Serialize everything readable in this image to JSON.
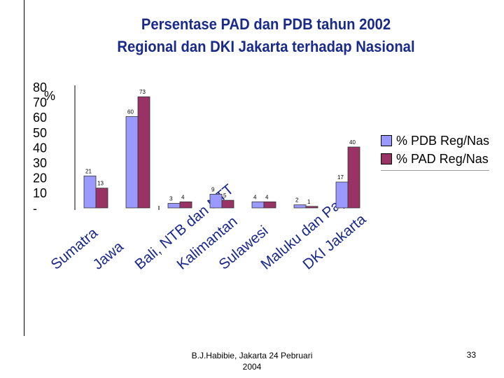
{
  "title_line1": "Persentase PAD dan PDB tahun 2002",
  "title_line2": "Regional dan DKI Jakarta terhadap Nasional",
  "chart_data": {
    "type": "bar",
    "title": "Persentase PAD dan PDB tahun 2002 Regional dan DKI Jakarta terhadap Nasional",
    "ylabel": "%",
    "ylim": [
      0,
      80
    ],
    "yticks": [
      "80",
      "70",
      "60",
      "50",
      "40",
      "30",
      "20",
      "10",
      "-"
    ],
    "categories": [
      "Sumatra",
      "Jawa",
      "Bali, NTB dan NTT",
      "Kalimantan",
      "Sulawesi",
      "Maluku dan Papua",
      "DKI Jakarta"
    ],
    "series": [
      {
        "name": "% PDB Reg/Nas",
        "color": "#9999ff",
        "values": [
          21,
          60,
          3,
          9,
          4,
          2,
          17
        ]
      },
      {
        "name": "% PAD Reg/Nas",
        "color": "#993366",
        "values": [
          13,
          73,
          4,
          5,
          4,
          1,
          40
        ]
      }
    ],
    "legend_position": "right"
  },
  "footer_line1": "B.J.Habibie, Jakarta 24 Pebruari",
  "footer_line2": "2004",
  "page_number": "33"
}
